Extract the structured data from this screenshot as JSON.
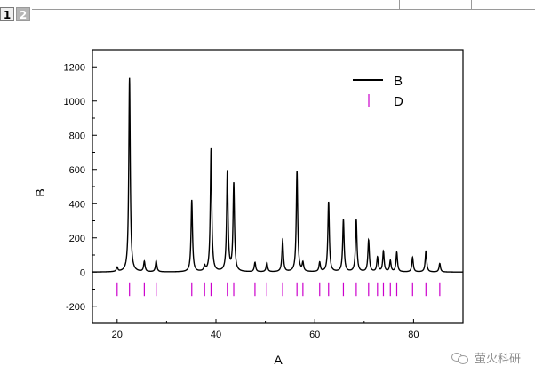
{
  "window": {
    "tabs": [
      {
        "label": "1",
        "active": true
      },
      {
        "label": "2",
        "active": false
      }
    ]
  },
  "watermark": {
    "text": "萤火科研",
    "icon": "chat-bubbles-icon"
  },
  "chart_data": {
    "type": "line",
    "title": "",
    "xlabel": "A",
    "ylabel": "B",
    "xlim": [
      15,
      90
    ],
    "ylim": [
      -300,
      1300
    ],
    "x_ticks": [
      20,
      40,
      60,
      80
    ],
    "y_ticks": [
      -200,
      0,
      200,
      400,
      600,
      800,
      1000,
      1200
    ],
    "grid": false,
    "legend_position": "top-right",
    "legend": [
      {
        "label": "B",
        "marker": "line",
        "color": "#000000"
      },
      {
        "label": "D",
        "marker": "vertical-tick",
        "color": "#cc00cc"
      }
    ],
    "series": [
      {
        "name": "B",
        "color": "#000000",
        "style": "line",
        "peaks": [
          {
            "x": 20.0,
            "y": 25
          },
          {
            "x": 22.5,
            "y": 1135
          },
          {
            "x": 25.5,
            "y": 60
          },
          {
            "x": 27.9,
            "y": 65
          },
          {
            "x": 35.1,
            "y": 420
          },
          {
            "x": 37.7,
            "y": 30
          },
          {
            "x": 39.0,
            "y": 720
          },
          {
            "x": 42.3,
            "y": 585
          },
          {
            "x": 43.6,
            "y": 515
          },
          {
            "x": 47.9,
            "y": 55
          },
          {
            "x": 50.3,
            "y": 55
          },
          {
            "x": 53.5,
            "y": 185
          },
          {
            "x": 56.4,
            "y": 590
          },
          {
            "x": 57.6,
            "y": 50
          },
          {
            "x": 61.0,
            "y": 55
          },
          {
            "x": 62.8,
            "y": 410
          },
          {
            "x": 65.8,
            "y": 305
          },
          {
            "x": 68.4,
            "y": 305
          },
          {
            "x": 70.9,
            "y": 185
          },
          {
            "x": 72.7,
            "y": 85
          },
          {
            "x": 73.9,
            "y": 120
          },
          {
            "x": 75.3,
            "y": 65
          },
          {
            "x": 76.6,
            "y": 115
          },
          {
            "x": 79.8,
            "y": 85
          },
          {
            "x": 82.5,
            "y": 125
          },
          {
            "x": 85.3,
            "y": 50
          }
        ]
      },
      {
        "name": "D",
        "color": "#cc00cc",
        "style": "vertical-ticks",
        "y_range": [
          -140,
          -60
        ],
        "x": [
          20.0,
          22.5,
          25.5,
          27.9,
          35.1,
          37.7,
          39.0,
          42.3,
          43.6,
          47.9,
          50.3,
          53.5,
          56.4,
          57.6,
          61.0,
          62.8,
          65.8,
          68.4,
          70.9,
          72.7,
          73.9,
          75.3,
          76.6,
          79.8,
          82.5,
          85.3
        ]
      }
    ]
  }
}
